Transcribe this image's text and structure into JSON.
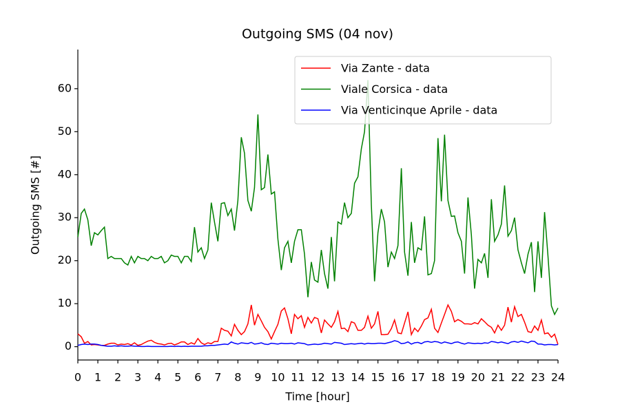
{
  "chart_data": {
    "type": "line",
    "title": "Outgoing SMS (04 nov)",
    "xlabel": "Time [hour]",
    "ylabel": "Outgoing SMS [#]",
    "x": [
      0,
      0.17,
      0.33,
      0.5,
      0.67,
      0.83,
      1,
      1.17,
      1.33,
      1.5,
      1.67,
      1.83,
      2,
      2.17,
      2.33,
      2.5,
      2.67,
      2.83,
      3,
      3.17,
      3.33,
      3.5,
      3.67,
      3.83,
      4,
      4.17,
      4.33,
      4.5,
      4.67,
      4.83,
      5,
      5.17,
      5.33,
      5.5,
      5.67,
      5.83,
      6,
      6.17,
      6.33,
      6.5,
      6.67,
      6.83,
      7,
      7.17,
      7.33,
      7.5,
      7.67,
      7.83,
      8,
      8.17,
      8.33,
      8.5,
      8.67,
      8.83,
      9,
      9.17,
      9.33,
      9.5,
      9.67,
      9.83,
      10,
      10.17,
      10.33,
      10.5,
      10.67,
      10.83,
      11,
      11.17,
      11.33,
      11.5,
      11.67,
      11.83,
      12,
      12.17,
      12.33,
      12.5,
      12.67,
      12.83,
      13,
      13.17,
      13.33,
      13.5,
      13.67,
      13.83,
      14,
      14.17,
      14.33,
      14.5,
      14.67,
      14.83,
      15,
      15.17,
      15.33,
      15.5,
      15.67,
      15.83,
      16,
      16.17,
      16.33,
      16.5,
      16.67,
      16.83,
      17,
      17.17,
      17.33,
      17.5,
      17.67,
      17.83,
      18,
      18.17,
      18.33,
      18.5,
      18.67,
      18.83,
      19,
      19.17,
      19.33,
      19.5,
      19.67,
      19.83,
      20,
      20.17,
      20.33,
      20.5,
      20.67,
      20.83,
      21,
      21.17,
      21.33,
      21.5,
      21.67,
      21.83,
      22,
      22.17,
      22.33,
      22.5,
      22.67,
      22.83,
      23,
      23.17,
      23.33,
      23.5,
      23.67,
      23.83,
      24
    ],
    "series": [
      {
        "name": "Via Zante - data",
        "color": "#ff0000",
        "values": [
          3,
          2.3,
          0.8,
          1.2,
          0.4,
          0.5,
          0.4,
          0.3,
          0.3,
          0.6,
          0.8,
          0.8,
          0.4,
          0.6,
          0.5,
          0.7,
          0.4,
          0.9,
          0.3,
          0.5,
          0.9,
          1.3,
          1.5,
          1,
          0.7,
          0.6,
          0.4,
          0.7,
          0.8,
          0.4,
          0.7,
          1.1,
          1.1,
          0.5,
          0.9,
          0.6,
          1.9,
          0.9,
          0.5,
          0.9,
          0.7,
          1.2,
          1.2,
          4.3,
          3.8,
          3.6,
          2.5,
          5.2,
          3.8,
          2.8,
          3.5,
          5.3,
          9.7,
          5,
          7.5,
          6,
          4.5,
          3.5,
          1.8,
          3.5,
          5.2,
          8.3,
          9,
          6.5,
          3,
          7.5,
          6.5,
          7.2,
          4.5,
          6.8,
          5.5,
          6.8,
          6.5,
          3.2,
          6.2,
          5.3,
          4.5,
          5.8,
          8.2,
          4.2,
          4.3,
          3.5,
          5.8,
          5.5,
          3.8,
          3.8,
          4.5,
          7.1,
          4.3,
          5.3,
          8.2,
          2.8,
          2.8,
          2.9,
          4.2,
          6.2,
          3.2,
          3,
          5.5,
          8.1,
          2.8,
          4.3,
          3.5,
          4.8,
          6.3,
          6.7,
          8.7,
          4.3,
          3.3,
          5.5,
          7.5,
          9.7,
          8.2,
          5.8,
          6.3,
          5.9,
          5.3,
          5.3,
          5.2,
          5.6,
          5.3,
          6.5,
          5.8,
          5,
          4.5,
          3.2,
          5,
          3.8,
          5,
          9.2,
          5.7,
          9.3,
          7,
          7.5,
          5.7,
          3.5,
          3.3,
          4.8,
          3.8,
          6.2,
          3,
          3.2,
          2.2,
          2.9,
          0.5
        ]
      },
      {
        "name": "Viale Corsica - data",
        "color": "#008000",
        "values": [
          25.5,
          31,
          32,
          29.5,
          23.5,
          26.5,
          26,
          27,
          27.8,
          20.5,
          21,
          20.5,
          20.5,
          20.5,
          19.5,
          19,
          21,
          19.5,
          21,
          20.5,
          20.5,
          20,
          21,
          20.5,
          20.5,
          21,
          19.5,
          20,
          21.3,
          21,
          21,
          19.5,
          21,
          21,
          19.8,
          27.8,
          22,
          23,
          20.5,
          22.5,
          33.5,
          29,
          24.5,
          33.3,
          33.5,
          30.5,
          32,
          27,
          34,
          48.7,
          45,
          34,
          31.5,
          37,
          54,
          36.5,
          37,
          44.7,
          35.5,
          36,
          25,
          17.8,
          23,
          24.5,
          19.5,
          24.5,
          27.2,
          27.2,
          21.5,
          11.5,
          19.7,
          15.5,
          15,
          22.5,
          17,
          13.5,
          25.5,
          15.2,
          29,
          28.5,
          33.5,
          30,
          31,
          38,
          39.5,
          46,
          50,
          62,
          33,
          15.2,
          26.5,
          32,
          29,
          18.5,
          22,
          20.5,
          23.5,
          41.5,
          22,
          16.5,
          29,
          19.5,
          23,
          22.5,
          30.3,
          16.7,
          17,
          20,
          48.5,
          33.8,
          49.3,
          34,
          30.3,
          30.4,
          26.5,
          24.5,
          17,
          34.7,
          26,
          13.5,
          20.3,
          19.5,
          21.7,
          16,
          34.3,
          24.5,
          26,
          28.5,
          37.5,
          25.7,
          27,
          30,
          22.5,
          19.5,
          17,
          21.5,
          24.3,
          12.7,
          24.5,
          16,
          31.3,
          21,
          9.5,
          7.5,
          9
        ]
      },
      {
        "name": "Via Venticinque Aprile - data",
        "color": "#0000ff",
        "values": [
          0.3,
          0.5,
          0.6,
          0.5,
          0.6,
          0.6,
          0.5,
          0.3,
          0.2,
          0.1,
          0.1,
          0.2,
          0.1,
          0.2,
          0.1,
          0.1,
          0.2,
          0.1,
          0.1,
          0.05,
          0.05,
          0.1,
          0.05,
          0.05,
          0.05,
          0.05,
          0.05,
          0.05,
          0.1,
          0.05,
          0.1,
          0.05,
          0.1,
          0.05,
          0.1,
          0.1,
          0.1,
          0.1,
          0.2,
          0.2,
          0.3,
          0.3,
          0.4,
          0.5,
          0.6,
          0.5,
          1.1,
          0.8,
          0.6,
          0.9,
          0.8,
          0.7,
          1,
          0.6,
          0.7,
          0.9,
          0.6,
          0.5,
          0.8,
          0.7,
          0.6,
          0.8,
          0.7,
          0.7,
          0.8,
          0.6,
          0.9,
          0.8,
          0.7,
          0.4,
          0.5,
          0.6,
          0.5,
          0.6,
          0.8,
          0.7,
          0.6,
          1,
          0.9,
          0.8,
          0.5,
          0.6,
          0.7,
          0.6,
          0.7,
          0.8,
          0.6,
          0.8,
          0.7,
          0.7,
          0.8,
          0.8,
          0.7,
          0.9,
          1.1,
          1.4,
          1.2,
          0.7,
          0.8,
          1.1,
          0.6,
          0.9,
          1,
          0.7,
          1.1,
          1.2,
          1,
          1.2,
          1.1,
          0.8,
          1.1,
          0.9,
          0.7,
          1,
          1.1,
          0.8,
          0.6,
          0.9,
          0.8,
          0.7,
          0.8,
          0.7,
          0.9,
          0.8,
          1.2,
          1.1,
          0.9,
          1.1,
          0.9,
          0.7,
          1.1,
          1.2,
          1,
          1.3,
          1.1,
          0.9,
          1.3,
          1.2,
          0.6,
          0.6,
          0.4,
          0.5,
          0.5,
          0.4,
          0.5
        ]
      }
    ],
    "xlim": [
      0,
      24
    ],
    "xticks": [
      0,
      1,
      2,
      3,
      4,
      5,
      6,
      7,
      8,
      9,
      10,
      11,
      12,
      13,
      14,
      15,
      16,
      17,
      18,
      19,
      20,
      21,
      22,
      23,
      24
    ],
    "ylim": [
      -3.1,
      69.1
    ],
    "yticks": [
      0,
      10,
      20,
      30,
      40,
      50,
      60
    ],
    "legend": "upper right"
  }
}
